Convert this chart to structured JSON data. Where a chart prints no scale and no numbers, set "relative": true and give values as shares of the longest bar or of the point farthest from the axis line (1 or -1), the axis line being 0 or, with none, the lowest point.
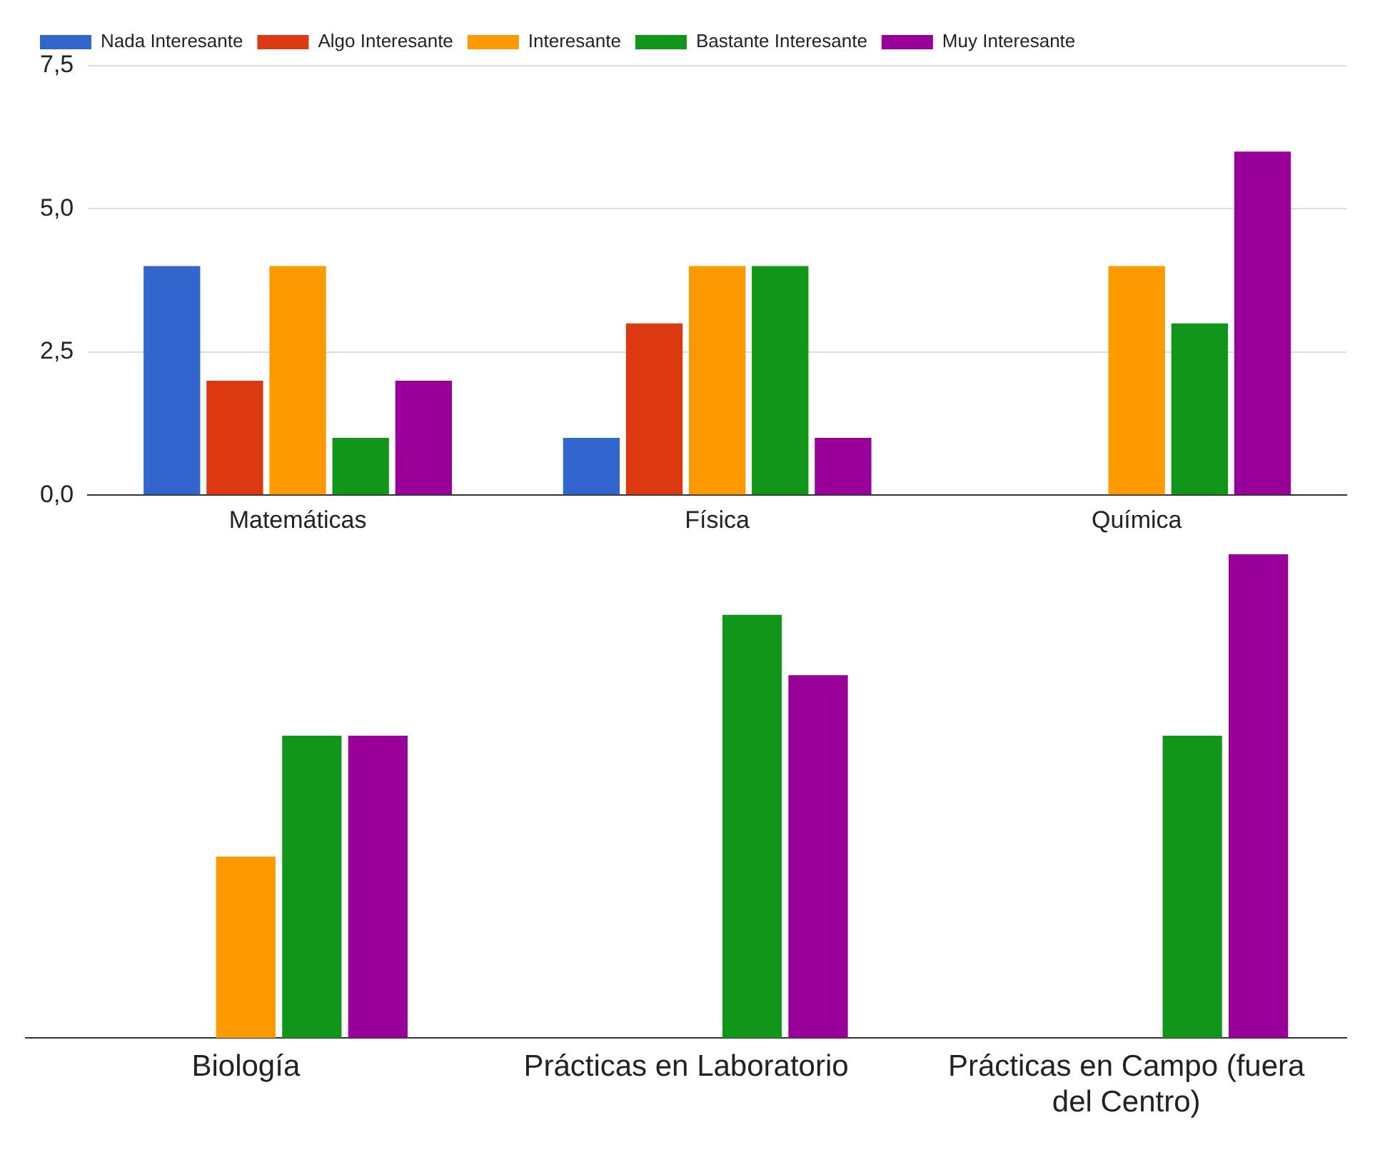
{
  "chart_data": [
    {
      "type": "bar",
      "categories": [
        "Matemáticas",
        "Física",
        "Química"
      ],
      "series": [
        {
          "name": "Nada Interesante",
          "color": "#3366cc",
          "values": [
            4,
            1,
            0
          ]
        },
        {
          "name": "Algo Interesante",
          "color": "#dc3912",
          "values": [
            2,
            3,
            0
          ]
        },
        {
          "name": "Interesante",
          "color": "#ff9900",
          "values": [
            4,
            4,
            4
          ]
        },
        {
          "name": "Bastante Interesante",
          "color": "#109618",
          "values": [
            1,
            4,
            3
          ]
        },
        {
          "name": "Muy Interesante",
          "color": "#990099",
          "values": [
            2,
            1,
            6
          ]
        }
      ],
      "ylim": [
        0,
        7.5
      ],
      "yticks": [
        {
          "value": 0,
          "label": "0,0"
        },
        {
          "value": 2.5,
          "label": "2,5"
        },
        {
          "value": 5,
          "label": "5,0"
        },
        {
          "value": 7.5,
          "label": "7,5"
        }
      ],
      "grid": "y",
      "legend": "top"
    },
    {
      "type": "bar",
      "categories": [
        "Biología",
        "Prácticas en Laboratorio",
        "Prácticas en Campo (fuera del Centro)"
      ],
      "series": [
        {
          "color": "#3366cc",
          "values": [
            0,
            0,
            0
          ]
        },
        {
          "color": "#dc3912",
          "values": [
            0,
            0,
            0
          ]
        },
        {
          "color": "#ff9900",
          "values": [
            0.375,
            0,
            0
          ]
        },
        {
          "color": "#109618",
          "values": [
            0.625,
            0.875,
            0.625
          ]
        },
        {
          "color": "#990099",
          "values": [
            0.625,
            0.75,
            1
          ]
        }
      ],
      "relative": true
    }
  ]
}
